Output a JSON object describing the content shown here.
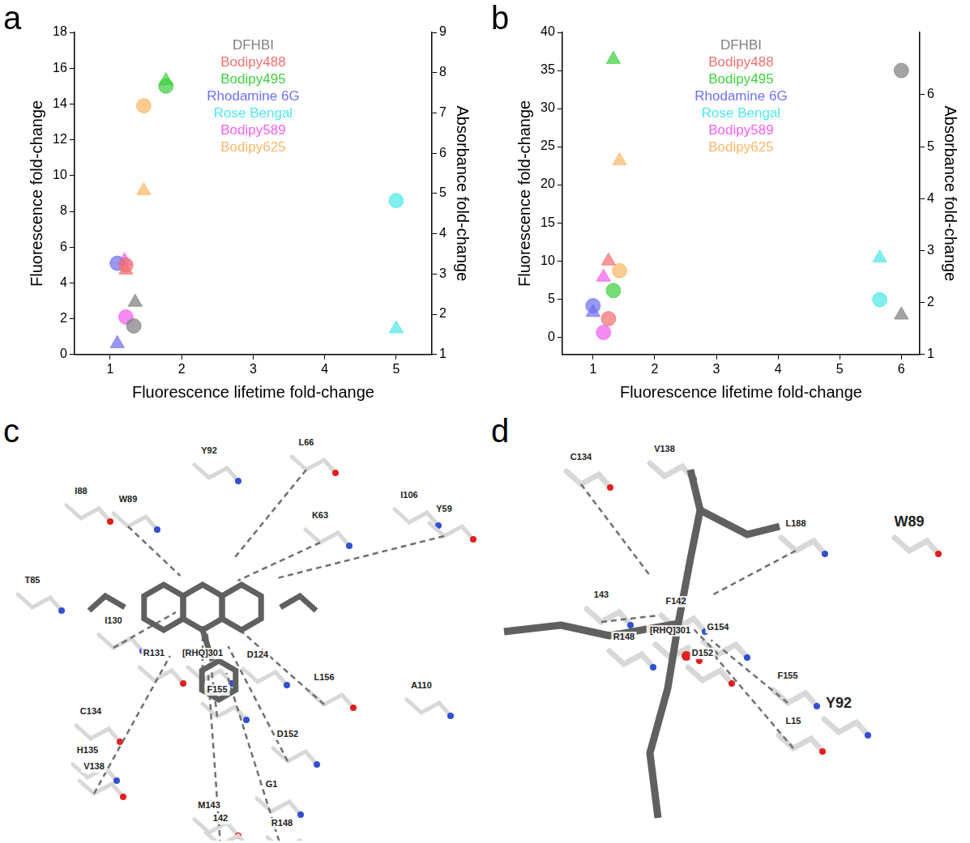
{
  "chart_data": [
    {
      "type": "scatter",
      "panel": "a",
      "legend": "top",
      "grid": false,
      "x_label": "Fluorescence lifetime fold-change",
      "y_label": "Fluorescence fold-change",
      "y2_label": "Absorbance fold-change",
      "xlim": [
        0.5,
        5.5
      ],
      "xticks": [
        1,
        2,
        3,
        4,
        5
      ],
      "ylim": [
        0,
        18
      ],
      "yticks": [
        0,
        2,
        4,
        6,
        8,
        10,
        12,
        14,
        16,
        18
      ],
      "y2lim": [
        1,
        9
      ],
      "y2ticks": [
        1,
        2,
        3,
        4,
        5,
        6,
        7,
        8,
        9
      ],
      "series": [
        {
          "name": "DFHBI",
          "color": "#808080",
          "marker": "circle",
          "x": [
            1.33
          ],
          "values": [
            1.6
          ]
        },
        {
          "name": "DFHBI",
          "color": "#808080",
          "marker": "triangle",
          "axis": "y2",
          "x": [
            1.35
          ],
          "values": [
            2.3
          ]
        },
        {
          "name": "Bodipy488",
          "color": "#f07070",
          "marker": "circle",
          "x": [
            1.22
          ],
          "values": [
            5.0
          ]
        },
        {
          "name": "Bodipy488",
          "color": "#f07070",
          "marker": "triangle",
          "axis": "y2",
          "x": [
            1.22
          ],
          "values": [
            3.1
          ]
        },
        {
          "name": "Bodipy495",
          "color": "#40d040",
          "marker": "circle",
          "x": [
            1.78
          ],
          "values": [
            15.0
          ]
        },
        {
          "name": "Bodipy495",
          "color": "#40d040",
          "marker": "triangle",
          "axis": "y2",
          "x": [
            1.78
          ],
          "values": [
            7.8
          ]
        },
        {
          "name": "Rhodamine 6G",
          "color": "#7070f0",
          "marker": "circle",
          "x": [
            1.1
          ],
          "values": [
            5.1
          ]
        },
        {
          "name": "Rhodamine 6G",
          "color": "#7070f0",
          "marker": "triangle",
          "axis": "y2",
          "x": [
            1.1
          ],
          "values": [
            1.27
          ]
        },
        {
          "name": "Rose Bengal",
          "color": "#50e8e8",
          "marker": "circle",
          "x": [
            5.0
          ],
          "values": [
            8.6
          ]
        },
        {
          "name": "Rose Bengal",
          "color": "#50e8e8",
          "marker": "triangle",
          "axis": "y2",
          "x": [
            5.0
          ],
          "values": [
            1.64
          ]
        },
        {
          "name": "Bodipy589",
          "color": "#f060f0",
          "marker": "circle",
          "x": [
            1.22
          ],
          "values": [
            2.1
          ]
        },
        {
          "name": "Bodipy589",
          "color": "#f060f0",
          "marker": "triangle",
          "axis": "y2",
          "x": [
            1.2
          ],
          "values": [
            3.33
          ]
        },
        {
          "name": "Bodipy625",
          "color": "#f8b868",
          "marker": "circle",
          "x": [
            1.47
          ],
          "values": [
            13.9
          ]
        },
        {
          "name": "Bodipy625",
          "color": "#f8b868",
          "marker": "triangle",
          "axis": "y2",
          "x": [
            1.47
          ],
          "values": [
            5.07
          ]
        }
      ]
    },
    {
      "type": "scatter",
      "panel": "b",
      "legend": "top",
      "grid": false,
      "x_label": "Fluorescence lifetime fold-change",
      "y_label": "Fluorescence fold-change",
      "y2_label": "Absorbance fold-change",
      "xlim": [
        0.5,
        6.3
      ],
      "xticks": [
        1,
        2,
        3,
        4,
        5,
        6
      ],
      "ylim": [
        -2.3,
        40
      ],
      "yticks": [
        0,
        5,
        10,
        15,
        20,
        25,
        30,
        35,
        40
      ],
      "y2lim": [
        1,
        7.2
      ],
      "y2ticks": [
        1,
        2,
        3,
        4,
        5,
        6
      ],
      "series": [
        {
          "name": "DFHBI",
          "color": "#808080",
          "marker": "circle",
          "x": [
            6.0
          ],
          "values": [
            35.0
          ]
        },
        {
          "name": "DFHBI",
          "color": "#808080",
          "marker": "triangle",
          "axis": "y2",
          "x": [
            6.0
          ],
          "values": [
            1.76
          ]
        },
        {
          "name": "Bodipy488",
          "color": "#f07070",
          "marker": "circle",
          "x": [
            1.25
          ],
          "values": [
            2.4
          ]
        },
        {
          "name": "Bodipy488",
          "color": "#f07070",
          "marker": "triangle",
          "axis": "y2",
          "x": [
            1.25
          ],
          "values": [
            2.8
          ]
        },
        {
          "name": "Bodipy495",
          "color": "#40d040",
          "marker": "circle",
          "x": [
            1.33
          ],
          "values": [
            6.1
          ]
        },
        {
          "name": "Bodipy495",
          "color": "#40d040",
          "marker": "triangle",
          "axis": "y2",
          "x": [
            1.33
          ],
          "values": [
            6.68
          ]
        },
        {
          "name": "Rhodamine 6G",
          "color": "#7070f0",
          "marker": "circle",
          "x": [
            1.0
          ],
          "values": [
            4.1
          ]
        },
        {
          "name": "Rhodamine 6G",
          "color": "#7070f0",
          "marker": "triangle",
          "axis": "y2",
          "x": [
            1.0
          ],
          "values": [
            1.81
          ]
        },
        {
          "name": "Rose Bengal",
          "color": "#50e8e8",
          "marker": "circle",
          "x": [
            5.65
          ],
          "values": [
            4.9
          ]
        },
        {
          "name": "Rose Bengal",
          "color": "#50e8e8",
          "marker": "triangle",
          "axis": "y2",
          "x": [
            5.65
          ],
          "values": [
            2.86
          ]
        },
        {
          "name": "Bodipy589",
          "color": "#f060f0",
          "marker": "circle",
          "x": [
            1.17
          ],
          "values": [
            0.6
          ]
        },
        {
          "name": "Bodipy589",
          "color": "#f060f0",
          "marker": "triangle",
          "axis": "y2",
          "x": [
            1.17
          ],
          "values": [
            2.49
          ]
        },
        {
          "name": "Bodipy625",
          "color": "#f8b868",
          "marker": "circle",
          "x": [
            1.43
          ],
          "values": [
            8.7
          ]
        },
        {
          "name": "Bodipy625",
          "color": "#f8b868",
          "marker": "triangle",
          "axis": "y2",
          "x": [
            1.43
          ],
          "values": [
            4.73
          ]
        }
      ]
    }
  ],
  "structures": [
    {
      "panel": "c",
      "labels": [
        "L66",
        "Y92",
        "K63",
        "I88",
        "W89",
        "I106",
        "Y59",
        "T85",
        "I130",
        "R131",
        "[RHQ]301",
        "D124",
        "L156",
        "A110",
        "F155",
        "C134",
        "D152",
        "H135",
        "V138",
        "G1",
        "R148",
        "M143",
        "142"
      ]
    },
    {
      "panel": "d",
      "labels": [
        "C134",
        "V138",
        "L188",
        "W89",
        "143",
        "F142",
        "[RHQ]301",
        "R148",
        "G154",
        "D152",
        "F155",
        "Y92",
        "L15"
      ]
    }
  ]
}
